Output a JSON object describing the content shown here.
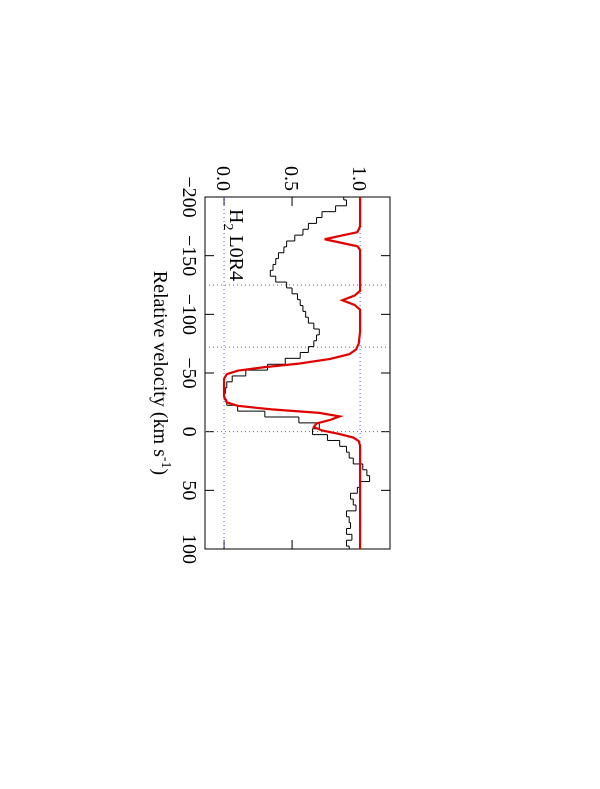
{
  "chart_data": {
    "type": "line",
    "xlabel": [
      "Relative velocity (km s",
      "-1",
      ")"
    ],
    "annotation": [
      "H",
      "2",
      "L0R4"
    ],
    "xlim": [
      -200,
      100
    ],
    "xticks": [
      {
        "value": -200,
        "label": "−200"
      },
      {
        "value": -150,
        "label": "−150"
      },
      {
        "value": -100,
        "label": "−100"
      },
      {
        "value": -50,
        "label": "−50"
      },
      0,
      50,
      100
    ],
    "ylim": [
      -0.14,
      1.22
    ],
    "yticks": [
      {
        "value": 0,
        "label": "0.0"
      },
      0.5,
      {
        "value": 1,
        "label": "1.0"
      }
    ],
    "vlines": [
      -125,
      -72,
      0
    ],
    "hlines": [
      0,
      1
    ],
    "series": [
      {
        "color": "#000000",
        "step": true,
        "x": [
          -200,
          -195,
          -190,
          -185,
          -180,
          -175,
          -170,
          -165,
          -160,
          -155,
          -150,
          -145,
          -140,
          -135,
          -130,
          -125,
          -120,
          -115,
          -110,
          -105,
          -100,
          -95,
          -90,
          -85,
          -80,
          -75,
          -70,
          -65,
          -60,
          -55,
          -50,
          -45,
          -40,
          -35,
          -30,
          -25,
          -20,
          -15,
          -10,
          -5,
          0,
          5,
          10,
          15,
          20,
          25,
          30,
          35,
          40,
          45,
          50,
          55,
          60,
          65,
          70,
          75,
          80,
          85,
          90,
          95,
          100
        ],
        "values": [
          0.88,
          0.9,
          0.82,
          0.72,
          0.68,
          0.62,
          0.58,
          0.52,
          0.46,
          0.44,
          0.4,
          0.38,
          0.36,
          0.34,
          0.38,
          0.46,
          0.5,
          0.54,
          0.56,
          0.58,
          0.6,
          0.62,
          0.66,
          0.7,
          0.68,
          0.66,
          0.62,
          0.56,
          0.45,
          0.32,
          0.16,
          0.06,
          0.02,
          0.01,
          0.0,
          0.02,
          0.1,
          0.3,
          0.55,
          0.7,
          0.65,
          0.76,
          0.85,
          0.9,
          0.92,
          0.95,
          1.02,
          1.05,
          1.07,
          1.0,
          0.98,
          0.93,
          0.95,
          0.97,
          0.9,
          0.92,
          0.93,
          0.9,
          0.94,
          0.9,
          0.92
        ]
      },
      {
        "color": "#e00000",
        "x": [
          -200,
          -175,
          -170,
          -167,
          -164,
          -161,
          -158,
          -155,
          -120,
          -116,
          -112,
          -108,
          -104,
          -85,
          -75,
          -70,
          -66,
          -62,
          -58,
          -55,
          -52,
          -49,
          -45,
          -30,
          -25,
          -22,
          -19,
          -16,
          -13,
          -10,
          -7,
          -4,
          -1,
          2,
          5,
          8,
          12,
          100
        ],
        "values": [
          1.0,
          1.0,
          0.98,
          0.86,
          0.74,
          0.86,
          0.98,
          1.0,
          1.0,
          0.96,
          0.87,
          0.96,
          1.0,
          1.0,
          0.99,
          0.97,
          0.92,
          0.78,
          0.55,
          0.3,
          0.1,
          0.02,
          0.0,
          0.0,
          0.02,
          0.1,
          0.35,
          0.7,
          0.85,
          0.78,
          0.68,
          0.66,
          0.72,
          0.85,
          0.95,
          0.99,
          1.0,
          1.0
        ]
      }
    ]
  }
}
